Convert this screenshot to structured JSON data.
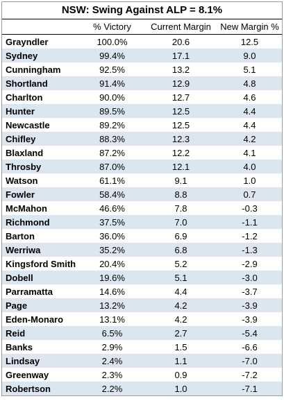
{
  "title": "NSW: Swing Against ALP = 8.1%",
  "columns": {
    "seat": "",
    "victory": "% Victory",
    "current": "Current Margin",
    "new": "New Margin %"
  },
  "colors": {
    "row_shade": "#dce6f1",
    "border": "#000000"
  },
  "rows": [
    {
      "seat": "Grayndler",
      "victory": "100.0%",
      "current": "20.6",
      "new": "12.5"
    },
    {
      "seat": "Sydney",
      "victory": "99.4%",
      "current": "17.1",
      "new": "9.0"
    },
    {
      "seat": "Cunningham",
      "victory": "92.5%",
      "current": "13.2",
      "new": "5.1"
    },
    {
      "seat": "Shortland",
      "victory": "91.4%",
      "current": "12.9",
      "new": "4.8"
    },
    {
      "seat": "Charlton",
      "victory": "90.0%",
      "current": "12.7",
      "new": "4.6"
    },
    {
      "seat": "Hunter",
      "victory": "89.5%",
      "current": "12.5",
      "new": "4.4"
    },
    {
      "seat": "Newcastle",
      "victory": "89.2%",
      "current": "12.5",
      "new": "4.4"
    },
    {
      "seat": "Chifley",
      "victory": "88.3%",
      "current": "12.3",
      "new": "4.2"
    },
    {
      "seat": "Blaxland",
      "victory": "87.2%",
      "current": "12.2",
      "new": "4.1"
    },
    {
      "seat": "Throsby",
      "victory": "87.0%",
      "current": "12.1",
      "new": "4.0"
    },
    {
      "seat": "Watson",
      "victory": "61.1%",
      "current": "9.1",
      "new": "1.0"
    },
    {
      "seat": "Fowler",
      "victory": "58.4%",
      "current": "8.8",
      "new": "0.7"
    },
    {
      "seat": "McMahon",
      "victory": "46.6%",
      "current": "7.8",
      "new": "-0.3"
    },
    {
      "seat": "Richmond",
      "victory": "37.5%",
      "current": "7.0",
      "new": "-1.1"
    },
    {
      "seat": "Barton",
      "victory": "36.0%",
      "current": "6.9",
      "new": "-1.2"
    },
    {
      "seat": "Werriwa",
      "victory": "35.2%",
      "current": "6.8",
      "new": "-1.3"
    },
    {
      "seat": "Kingsford Smith",
      "victory": "20.4%",
      "current": "5.2",
      "new": "-2.9"
    },
    {
      "seat": "Dobell",
      "victory": "19.6%",
      "current": "5.1",
      "new": "-3.0"
    },
    {
      "seat": "Parramatta",
      "victory": "14.6%",
      "current": "4.4",
      "new": "-3.7"
    },
    {
      "seat": "Page",
      "victory": "13.2%",
      "current": "4.2",
      "new": "-3.9"
    },
    {
      "seat": "Eden-Monaro",
      "victory": "13.1%",
      "current": "4.2",
      "new": "-3.9"
    },
    {
      "seat": "Reid",
      "victory": "6.5%",
      "current": "2.7",
      "new": "-5.4"
    },
    {
      "seat": "Banks",
      "victory": "2.9%",
      "current": "1.5",
      "new": "-6.6"
    },
    {
      "seat": "Lindsay",
      "victory": "2.4%",
      "current": "1.1",
      "new": "-7.0"
    },
    {
      "seat": "Greenway",
      "victory": "2.3%",
      "current": "0.9",
      "new": "-7.2"
    },
    {
      "seat": "Robertson",
      "victory": "2.2%",
      "current": "1.0",
      "new": "-7.1"
    }
  ]
}
